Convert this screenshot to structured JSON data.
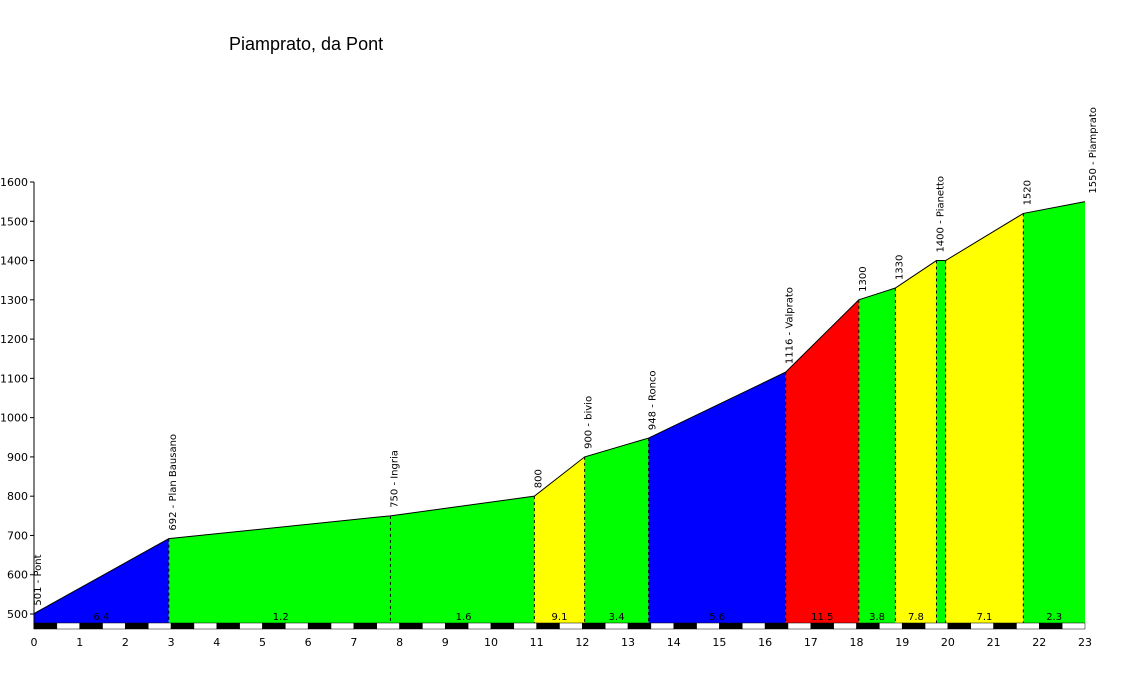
{
  "chart_data": {
    "type": "area",
    "title": "Piamprato, da Pont",
    "xlabel": "",
    "ylabel": "",
    "xlim": [
      0,
      23
    ],
    "ylim": [
      470,
      1600
    ],
    "x_ticks": [
      0,
      1,
      2,
      3,
      4,
      5,
      6,
      7,
      8,
      9,
      10,
      11,
      12,
      13,
      14,
      15,
      16,
      17,
      18,
      19,
      20,
      21,
      22,
      23
    ],
    "y_ticks": [
      500,
      600,
      700,
      800,
      900,
      1000,
      1100,
      1200,
      1300,
      1400,
      1500,
      1600
    ],
    "points": [
      {
        "x": 0,
        "y": 501,
        "label": "501 - Pont"
      },
      {
        "x": 2.95,
        "y": 692,
        "label": "692 - Plan Bausano"
      },
      {
        "x": 7.8,
        "y": 750,
        "label": "750 - Ingria"
      },
      {
        "x": 10.95,
        "y": 800,
        "label": "800"
      },
      {
        "x": 12.05,
        "y": 900,
        "label": "900 - bivio"
      },
      {
        "x": 13.45,
        "y": 948,
        "label": "948 - Ronco"
      },
      {
        "x": 16.45,
        "y": 1116,
        "label": "1116 - Valprato"
      },
      {
        "x": 18.05,
        "y": 1300,
        "label": "1300"
      },
      {
        "x": 18.85,
        "y": 1330,
        "label": "1330"
      },
      {
        "x": 19.75,
        "y": 1400,
        "label": "1400 - Pianetto"
      },
      {
        "x": 19.95,
        "y": 1400,
        "label": ""
      },
      {
        "x": 21.65,
        "y": 1520,
        "label": "1520"
      },
      {
        "x": 23,
        "y": 1550,
        "label": "1550 - Piamprato"
      }
    ],
    "segments": [
      {
        "from": 0,
        "to": 2.95,
        "gradient": "6.4",
        "color": "#0000FF"
      },
      {
        "from": 2.95,
        "to": 10.95,
        "gradient": "1.2",
        "color": "#00FF00"
      },
      {
        "from": 10.95,
        "to": 12.05,
        "gradient": "9.1",
        "color": "#FFFF00"
      },
      {
        "from": 12.05,
        "to": 13.45,
        "gradient": "3.4",
        "color": "#00FF00"
      },
      {
        "from": 13.45,
        "to": 16.45,
        "gradient": "5.6",
        "color": "#0000FF"
      },
      {
        "from": 16.45,
        "to": 18.05,
        "gradient": "11.5",
        "color": "#FF0000"
      },
      {
        "from": 18.05,
        "to": 18.85,
        "gradient": "3.8",
        "color": "#00FF00"
      },
      {
        "from": 18.85,
        "to": 19.75,
        "gradient": "7.8",
        "color": "#FFFF00"
      },
      {
        "from": 19.75,
        "to": 19.95,
        "gradient": "",
        "color": "#00FF00"
      },
      {
        "from": 19.95,
        "to": 21.65,
        "gradient": "7.1",
        "color": "#FFFF00"
      },
      {
        "from": 21.65,
        "to": 23,
        "gradient": "2.3",
        "color": "#00FF00"
      }
    ],
    "extra_gradient_labels": [
      {
        "x": 5.4,
        "gradient": "1.2"
      },
      {
        "x": 9.4,
        "gradient": "1.6"
      }
    ],
    "legend": "none",
    "grid": false
  }
}
